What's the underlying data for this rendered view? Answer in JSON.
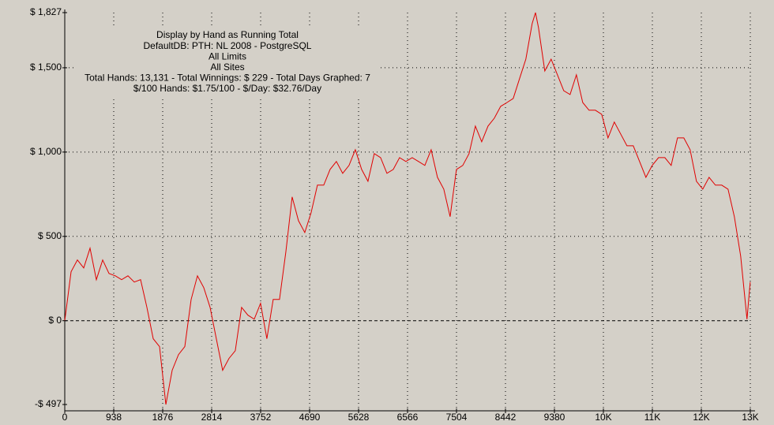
{
  "chart_data": {
    "type": "line",
    "annotations": [
      "Display by Hand as Running Total",
      "DefaultDB: PTH: NL 2008 - PostgreSQL",
      "All Limits",
      "All Sites",
      "Total Hands: 13,131 - Total Winnings: $ 229 - Total Days Graphed: 7",
      "$/100 Hands: $1.75/100 - $/Day: $32.76/Day"
    ],
    "xlim": [
      0,
      13132
    ],
    "xticks": [
      0,
      938,
      1876,
      2814,
      3752,
      4690,
      5628,
      6566,
      7504,
      8442,
      9380,
      {
        "value": 10318,
        "label": "10K"
      },
      {
        "value": 11256,
        "label": "11K"
      },
      {
        "value": 12194,
        "label": "12K"
      },
      {
        "value": 13132,
        "label": "13K"
      }
    ],
    "ylim": [
      -497,
      1827
    ],
    "yticks": [
      {
        "value": -497,
        "label": "-$ 497"
      },
      {
        "value": 0,
        "label": "$ 0"
      },
      {
        "value": 500,
        "label": "$ 500"
      },
      {
        "value": 1000,
        "label": "$ 1,000"
      },
      {
        "value": 1500,
        "label": "$ 1,500"
      },
      {
        "value": 1827,
        "label": "$ 1,827"
      }
    ],
    "grid": true,
    "series": [
      {
        "color": "#e00000",
        "x": [
          0,
          121,
          242,
          363,
          484,
          605,
          726,
          847,
          968,
          1089,
          1210,
          1331,
          1452,
          1573,
          1694,
          1815,
          1936,
          2057,
          2178,
          2299,
          2420,
          2541,
          2662,
          2783,
          2904,
          3025,
          3146,
          3267,
          3388,
          3509,
          3630,
          3751,
          3872,
          3993,
          4114,
          4235,
          4356,
          4477,
          4598,
          4719,
          4840,
          4961,
          5082,
          5203,
          5324,
          5445,
          5566,
          5687,
          5808,
          5929,
          6050,
          6171,
          6292,
          6413,
          6534,
          6655,
          6776,
          6897,
          7018,
          7139,
          7260,
          7381,
          7502,
          7623,
          7744,
          7865,
          7986,
          8107,
          8228,
          8349,
          8470,
          8591,
          8712,
          8833,
          8954,
          9017,
          9075,
          9196,
          9317,
          9438,
          9559,
          9680,
          9801,
          9922,
          10043,
          10164,
          10285,
          10406,
          10527,
          10648,
          10769,
          10890,
          11011,
          11132,
          11253,
          11374,
          11495,
          11616,
          11737,
          11858,
          11979,
          12100,
          12221,
          12342,
          12463,
          12584,
          12705,
          12826,
          12947,
          13068,
          13131
        ],
        "values": [
          0,
          290,
          360,
          313,
          430,
          243,
          360,
          280,
          266,
          243,
          266,
          229,
          243,
          79,
          -107,
          -154,
          -497,
          -294,
          -201,
          -154,
          126,
          266,
          196,
          79,
          -107,
          -294,
          -224,
          -178,
          79,
          33,
          9,
          103,
          -107,
          126,
          126,
          407,
          734,
          593,
          523,
          640,
          804,
          804,
          897,
          944,
          874,
          921,
          1014,
          897,
          827,
          991,
          967,
          874,
          897,
          967,
          944,
          967,
          944,
          921,
          1014,
          850,
          780,
          617,
          897,
          921,
          991,
          1154,
          1061,
          1154,
          1201,
          1271,
          1294,
          1318,
          1435,
          1551,
          1762,
          1827,
          1738,
          1481,
          1551,
          1458,
          1364,
          1341,
          1458,
          1294,
          1248,
          1248,
          1224,
          1084,
          1178,
          1108,
          1037,
          1037,
          944,
          850,
          921,
          967,
          967,
          921,
          1084,
          1084,
          1014,
          827,
          780,
          850,
          804,
          804,
          780,
          617,
          383,
          9,
          229
        ]
      }
    ]
  }
}
